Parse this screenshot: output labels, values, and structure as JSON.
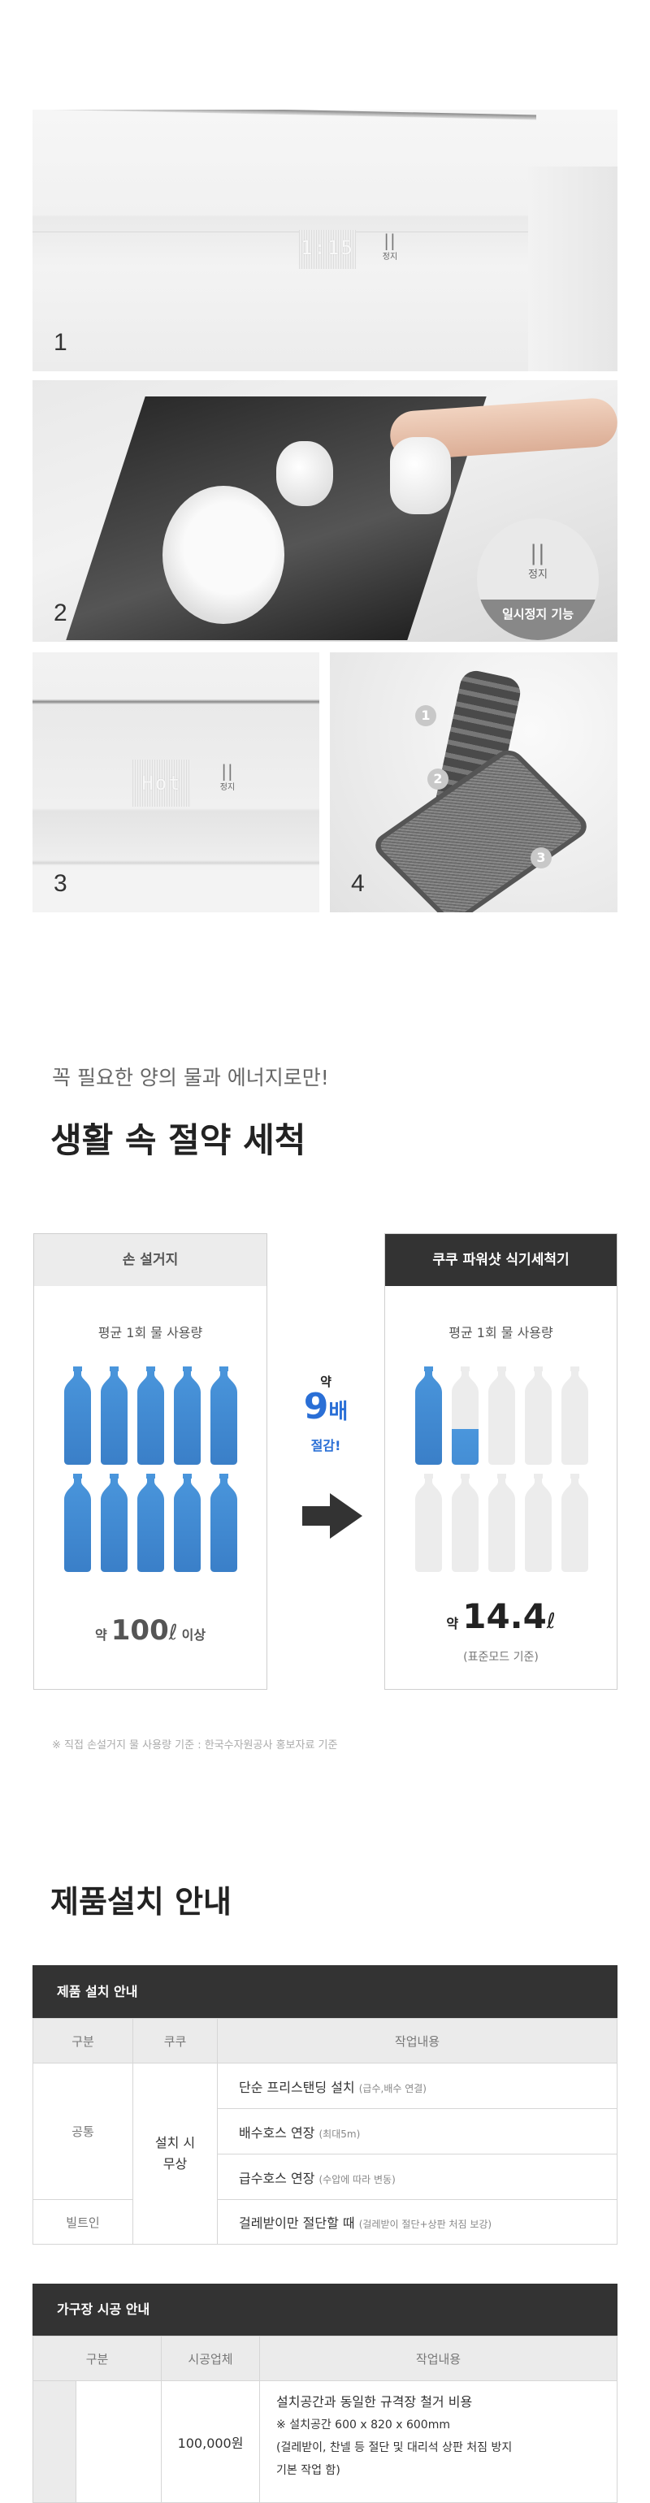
{
  "photos": [
    {
      "number": "1",
      "display": "1:15",
      "stop_label": "정지"
    },
    {
      "number": "2",
      "stop_label": "정지",
      "badge": "일시정지 기능"
    },
    {
      "number": "3",
      "display": "Hot",
      "stop_label": "정지"
    },
    {
      "number": "4",
      "parts": [
        "1",
        "2",
        "3"
      ]
    }
  ],
  "savings": {
    "subtitle": "꼭 필요한 양의 물과 에너지로만!",
    "title": "생활 속 절약 세척",
    "left_card": {
      "header": "손 설거지",
      "caption": "평균 1회 물 사용량",
      "prefix": "약",
      "value": "100",
      "unit": "ℓ",
      "suffix": "이상",
      "bottles_filled": 10
    },
    "middle": {
      "prefix": "약",
      "multiplier": "9",
      "unit": "배",
      "label": "절감!"
    },
    "right_card": {
      "header": "쿠쿠 파워샷 식기세척기",
      "caption": "평균 1회 물 사용량",
      "prefix": "약",
      "value": "14.4",
      "unit": "ℓ",
      "note": "(표준모드 기준)",
      "bottles_filled": 1.44
    },
    "footnote": "※ 직접 손설거지 물 사용량 기준 : 한국수자원공사 홍보자료 기준",
    "colors": {
      "water": "#3a7fc8",
      "empty_bottle": "#ececec",
      "accent": "#2a6fd6",
      "dark": "#333333"
    }
  },
  "install": {
    "title": "제품설치 안내",
    "table1": {
      "caption": "제품 설치 안내",
      "headers": [
        "구분",
        "쿠쿠",
        "작업내용"
      ],
      "group_common": "공통",
      "group_builtin": "빌트인",
      "cuckoo_value": [
        "설치 시",
        "무상"
      ],
      "rows": [
        {
          "main": "단순 프리스탠딩 설치",
          "note": "(급수,배수 연결)"
        },
        {
          "main": "배수호스 연장",
          "note": "(최대5m)"
        },
        {
          "main": "급수호스 연장",
          "note": "(수압에 따라 변동)"
        },
        {
          "main": "걸레받이만 절단할 때",
          "note": "(걸레받이 절단+상판 처짐 보강)"
        }
      ]
    },
    "table2": {
      "caption": "가구장 시공 안내",
      "headers": [
        "구분",
        "시공업체",
        "작업내용"
      ],
      "row1": {
        "price": "100,000원",
        "main": "설치공간과 동일한 규격장 철거 비용",
        "lines": [
          "※ 설치공간 600 x 820 x 600mm",
          "(걸레받이, 찬넬 등 절단 및 대리석 상판 처짐 방지",
          "기본 작업 함)"
        ]
      }
    }
  }
}
